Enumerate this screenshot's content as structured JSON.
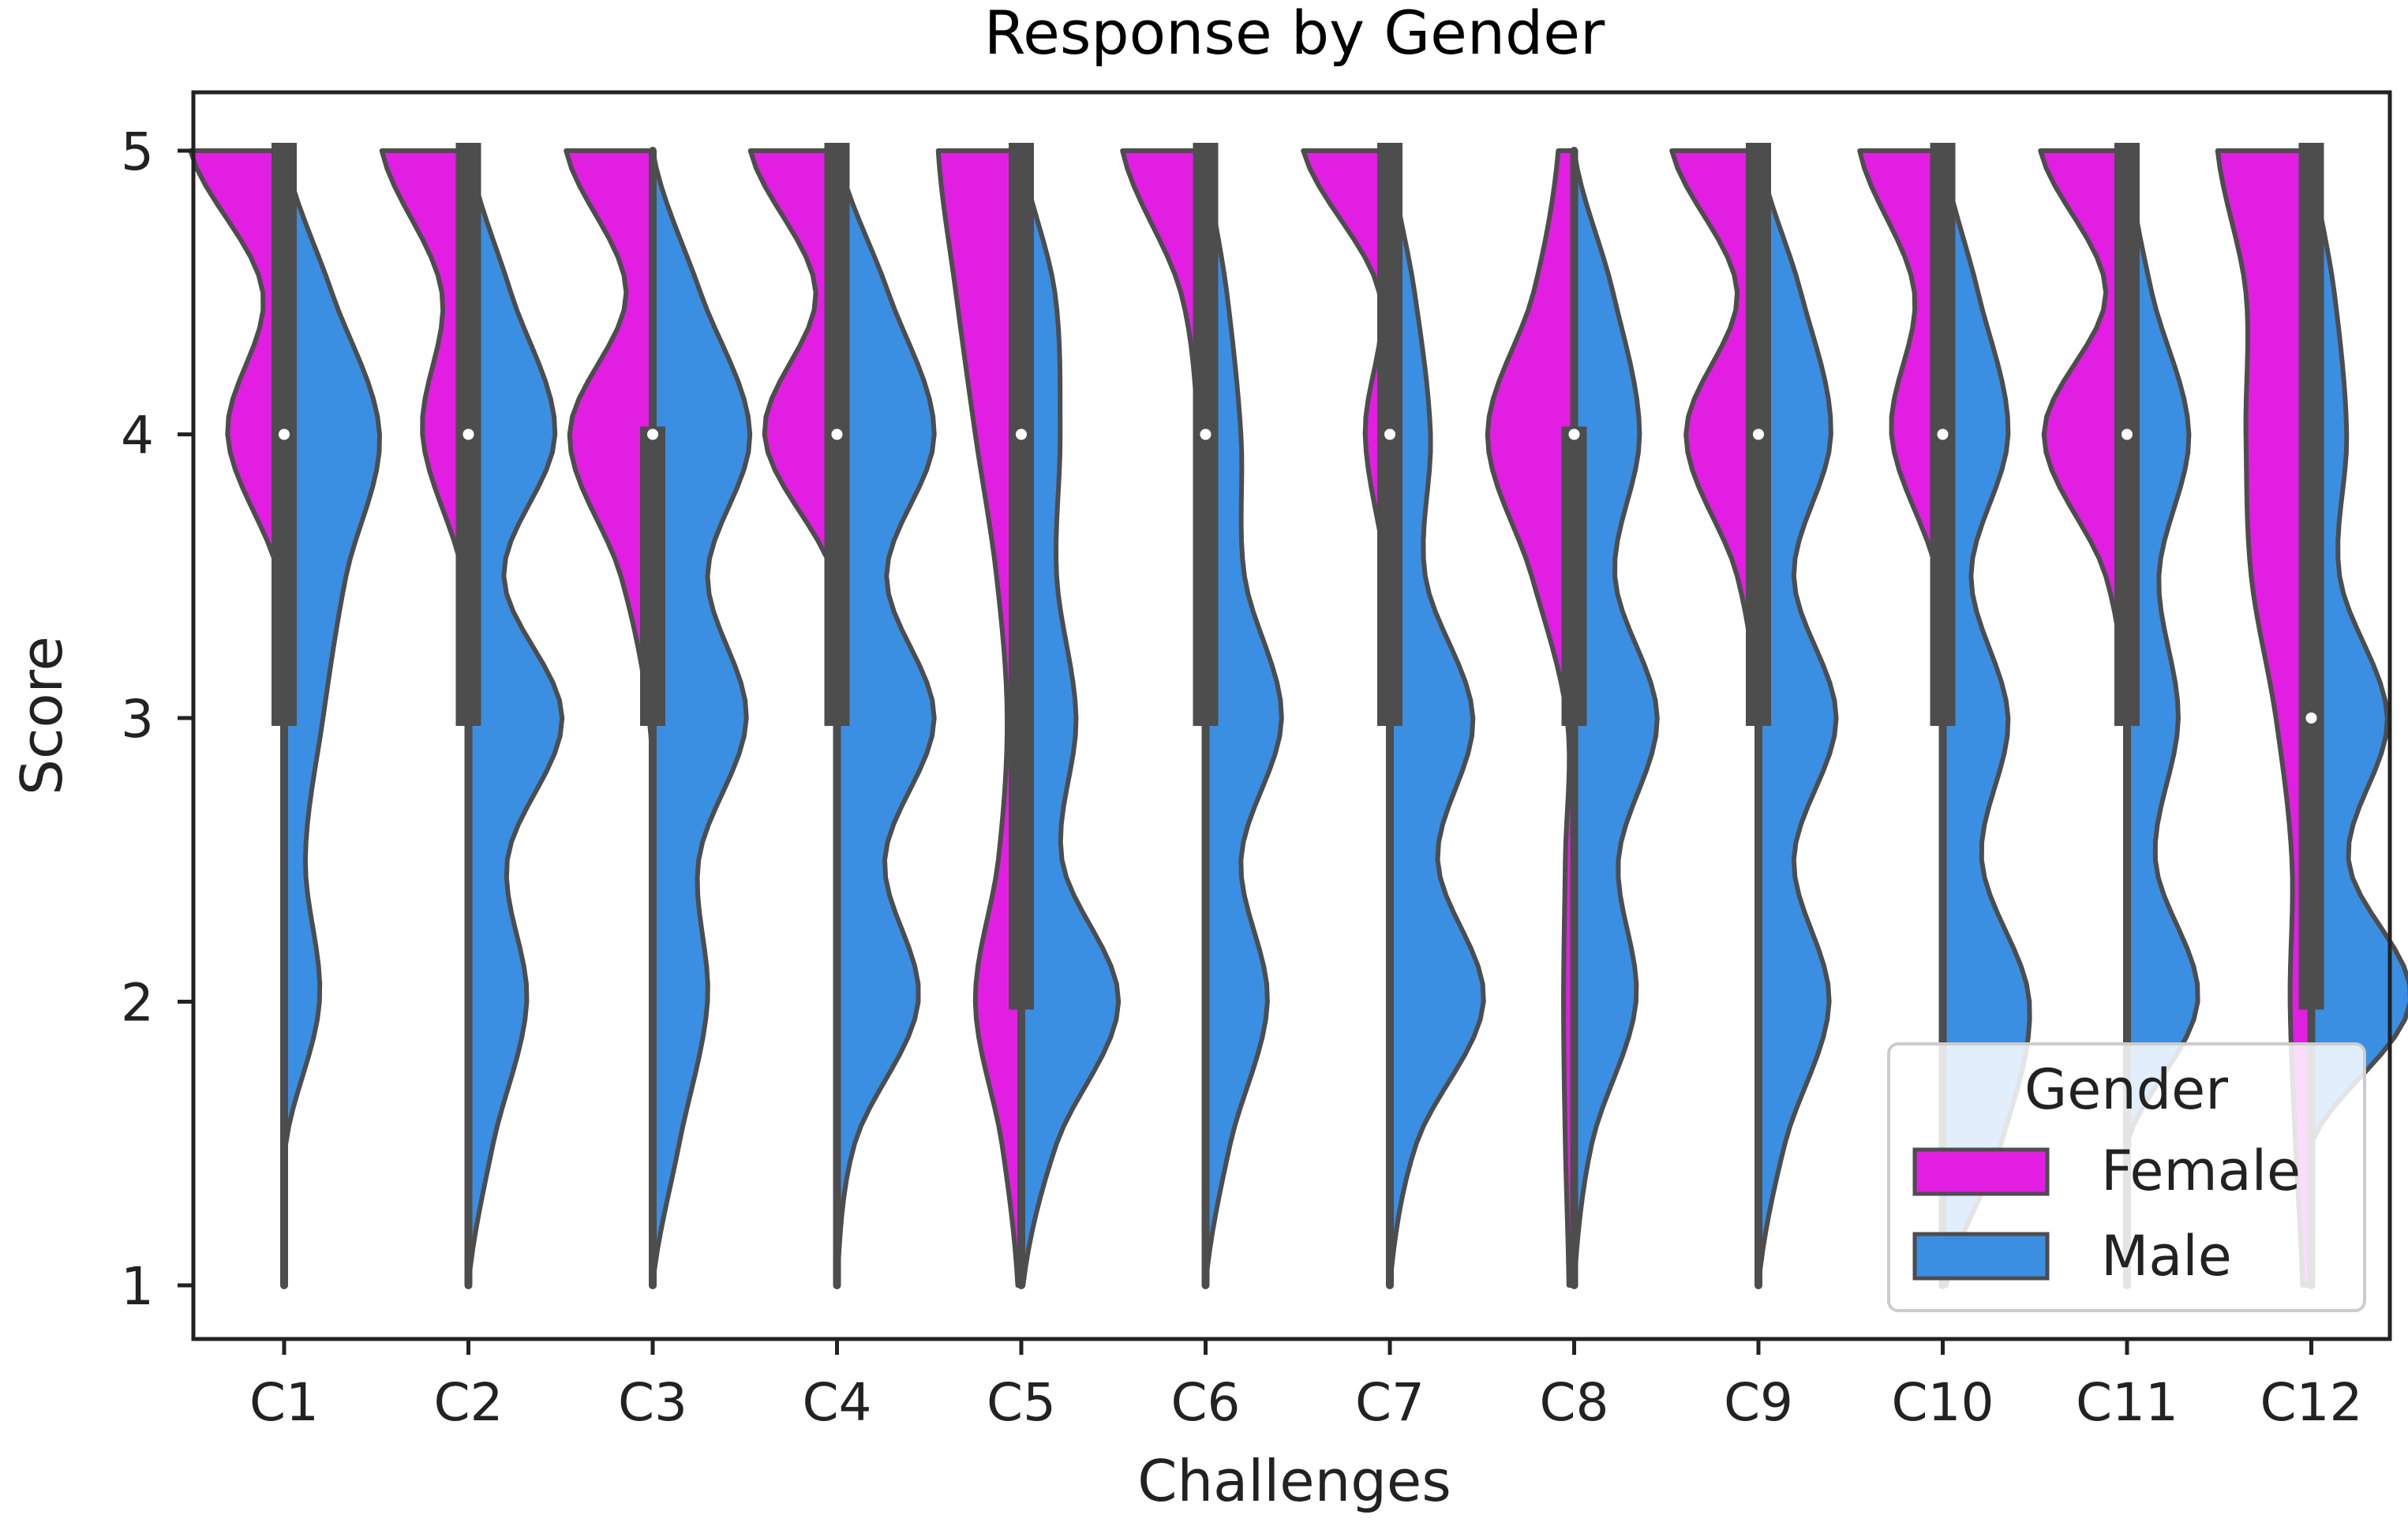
{
  "chart_data": {
    "type": "violin",
    "title": "Response by Gender",
    "xlabel": "Challenges",
    "ylabel": "Score",
    "ylim": [
      1,
      5
    ],
    "yticks": [
      "1",
      "2",
      "3",
      "4",
      "5"
    ],
    "categories": [
      "C1",
      "C2",
      "C3",
      "C4",
      "C5",
      "C6",
      "C7",
      "C8",
      "C9",
      "C10",
      "C11",
      "C12"
    ],
    "split": true,
    "legend": {
      "title": "Gender",
      "placement": "bottom-right",
      "entries": [
        {
          "label": "Female",
          "color": "#e21ee2"
        },
        {
          "label": "Male",
          "color": "#3a8fe2"
        }
      ]
    },
    "medians": [
      4,
      4,
      4,
      4,
      4,
      4,
      4,
      4,
      4,
      4,
      4,
      3
    ],
    "boxes": [
      {
        "q1": 3.0,
        "q3": 5.0,
        "wlo": 1,
        "whi": 5
      },
      {
        "q1": 3.0,
        "q3": 5.0,
        "wlo": 1,
        "whi": 5
      },
      {
        "q1": 3.0,
        "q3": 4.0,
        "wlo": 1,
        "whi": 5
      },
      {
        "q1": 3.0,
        "q3": 5.0,
        "wlo": 1,
        "whi": 5
      },
      {
        "q1": 2.0,
        "q3": 5.0,
        "wlo": 1,
        "whi": 5
      },
      {
        "q1": 3.0,
        "q3": 5.0,
        "wlo": 1,
        "whi": 5
      },
      {
        "q1": 3.0,
        "q3": 5.0,
        "wlo": 1,
        "whi": 5
      },
      {
        "q1": 3.0,
        "q3": 4.0,
        "wlo": 1,
        "whi": 5
      },
      {
        "q1": 3.0,
        "q3": 5.0,
        "wlo": 1,
        "whi": 5
      },
      {
        "q1": 3.0,
        "q3": 5.0,
        "wlo": 1,
        "whi": 5
      },
      {
        "q1": 3.0,
        "q3": 5.0,
        "wlo": 1,
        "whi": 5
      },
      {
        "q1": 2.0,
        "q3": 5.0,
        "wlo": 1,
        "whi": 5
      }
    ],
    "density_grid": [
      1.0,
      1.5,
      2.0,
      2.5,
      3.0,
      3.5,
      4.0,
      4.5,
      5.0
    ],
    "series": [
      {
        "name": "Female",
        "color": "#e21ee2",
        "densities": [
          [
            0,
            0,
            0,
            0,
            0,
            0.03,
            0.32,
            0.12,
            0.53
          ],
          [
            0,
            0,
            0,
            0,
            0,
            0.03,
            0.26,
            0.15,
            0.49
          ],
          [
            0,
            0,
            0,
            0,
            0.02,
            0.18,
            0.47,
            0.15,
            0.49
          ],
          [
            0,
            0,
            0,
            0,
            0,
            0.02,
            0.41,
            0.12,
            0.49
          ],
          [
            0.02,
            0.11,
            0.26,
            0.13,
            0.08,
            0.14,
            0.26,
            0.37,
            0.47
          ],
          [
            0,
            0,
            0,
            0,
            0,
            0.02,
            0.04,
            0.14,
            0.47
          ],
          [
            0,
            0,
            0,
            0,
            0,
            0.02,
            0.14,
            0.06,
            0.49
          ],
          [
            0.03,
            0.05,
            0.06,
            0.05,
            0.04,
            0.24,
            0.49,
            0.23,
            0.09
          ],
          [
            0,
            0,
            0,
            0,
            0,
            0.12,
            0.41,
            0.12,
            0.49
          ],
          [
            0,
            0,
            0,
            0,
            0,
            0.03,
            0.29,
            0.16,
            0.47
          ],
          [
            0,
            0,
            0,
            0,
            0,
            0.12,
            0.47,
            0.12,
            0.49
          ],
          [
            0.05,
            0.09,
            0.12,
            0.11,
            0.2,
            0.34,
            0.37,
            0.37,
            0.53
          ]
        ]
      },
      {
        "name": "Male",
        "color": "#3a8fe2",
        "densities": [
          [
            0,
            0.01,
            0.2,
            0.12,
            0.22,
            0.35,
            0.54,
            0.27,
            0
          ],
          [
            0,
            0.14,
            0.33,
            0.22,
            0.53,
            0.2,
            0.49,
            0.24,
            0
          ],
          [
            0,
            0.15,
            0.31,
            0.26,
            0.53,
            0.31,
            0.55,
            0.27,
            0
          ],
          [
            0,
            0.1,
            0.46,
            0.27,
            0.55,
            0.28,
            0.55,
            0.29,
            0
          ],
          [
            0.01,
            0.2,
            0.55,
            0.23,
            0.31,
            0.2,
            0.22,
            0.19,
            0
          ],
          [
            0,
            0.14,
            0.35,
            0.2,
            0.43,
            0.22,
            0.2,
            0.12,
            0
          ],
          [
            0,
            0.15,
            0.53,
            0.27,
            0.47,
            0.2,
            0.23,
            0.14,
            0
          ],
          [
            0,
            0.1,
            0.35,
            0.25,
            0.47,
            0.23,
            0.37,
            0.22,
            0
          ],
          [
            0,
            0.15,
            0.4,
            0.2,
            0.44,
            0.2,
            0.41,
            0.24,
            0
          ],
          [
            0.02,
            0.33,
            0.49,
            0.22,
            0.37,
            0.16,
            0.37,
            0.2,
            0
          ],
          [
            0,
            0,
            0.4,
            0.16,
            0.29,
            0.18,
            0.35,
            0.14,
            0
          ],
          [
            0,
            0,
            0.56,
            0.21,
            0.43,
            0.16,
            0.2,
            0.13,
            0
          ]
        ]
      }
    ]
  }
}
